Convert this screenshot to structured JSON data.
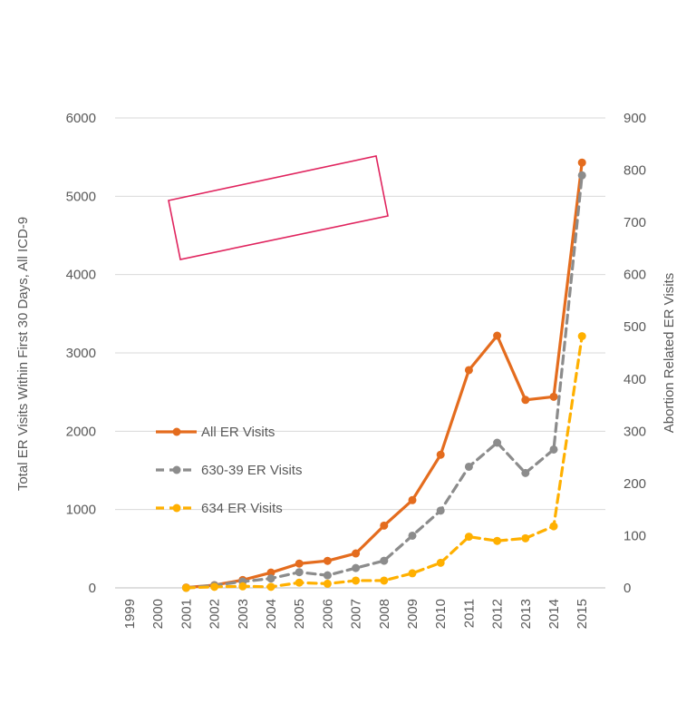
{
  "chart_data": {
    "type": "line",
    "categories": [
      "1999",
      "2000",
      "2001",
      "2002",
      "2003",
      "2004",
      "2005",
      "2006",
      "2007",
      "2008",
      "2009",
      "2010",
      "2011",
      "2012",
      "2013",
      "2014",
      "2015"
    ],
    "ylabel_left": "Total ER Visits Within First 30 Days, All ICD-9",
    "ylabel_right": "Abortion Related ER Visits",
    "ylim_left": [
      0,
      6000
    ],
    "ylim_right": [
      0,
      900
    ],
    "yticks_left": [
      "0",
      "1000",
      "2000",
      "3000",
      "4000",
      "5000",
      "6000"
    ],
    "yticks_right": [
      "0",
      "100",
      "200",
      "300",
      "400",
      "500",
      "600",
      "700",
      "800",
      "900"
    ],
    "grid": true,
    "legend_position": "middle-left",
    "series": [
      {
        "name": "All ER Visits",
        "axis": "left",
        "color": "#E46C1E",
        "style": "solid",
        "values": [
          null,
          null,
          5,
          35,
          100,
          195,
          310,
          345,
          440,
          795,
          1120,
          1700,
          2780,
          3220,
          2400,
          2440,
          5430
        ]
      },
      {
        "name": "630-39 ER Visits",
        "axis": "right",
        "color": "#8C8C8C",
        "style": "dashed",
        "values": [
          null,
          null,
          0,
          5,
          12,
          18,
          30,
          24,
          38,
          52,
          100,
          148,
          232,
          278,
          220,
          265,
          790
        ]
      },
      {
        "name": "634 ER Visits",
        "axis": "right",
        "color": "#FFB000",
        "style": "dashed",
        "values": [
          null,
          null,
          0,
          2,
          3,
          2,
          10,
          8,
          14,
          14,
          28,
          48,
          98,
          90,
          95,
          118,
          482
        ]
      }
    ]
  }
}
